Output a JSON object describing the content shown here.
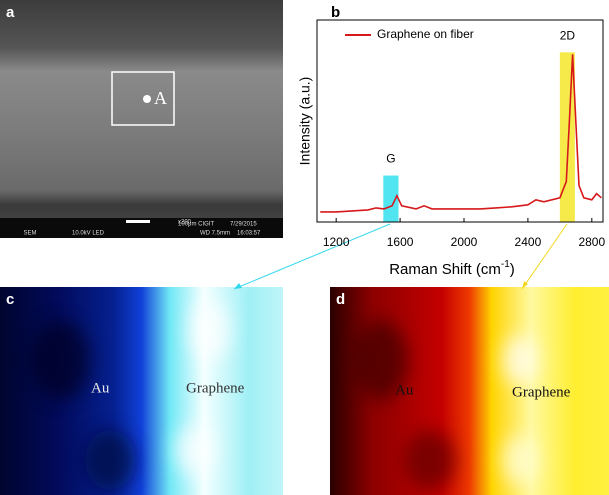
{
  "panels": {
    "a": {
      "label": "a",
      "marker": "A",
      "info": [
        "x200",
        "10.0kV LED",
        "SEM",
        "WD 7.5mm",
        "100μm CIGIT",
        "7/29/2015",
        "16:03:57"
      ]
    },
    "c": {
      "label": "c",
      "left_text": "Au",
      "right_text": "Graphene"
    },
    "d": {
      "label": "d",
      "left_text": "Au",
      "right_text": "Graphene"
    }
  },
  "chart_data": {
    "type": "line",
    "panel_label": "b",
    "x_label": {
      "text": "Raman Shift (cm",
      "sup": "-1",
      "end": ")"
    },
    "y_label": "Intensity (a.u.)",
    "x": [
      1100,
      1200,
      1300,
      1400,
      1450,
      1500,
      1550,
      1580,
      1610,
      1700,
      1750,
      1800,
      1900,
      2000,
      2100,
      2200,
      2300,
      2400,
      2450,
      2500,
      2600,
      2640,
      2660,
      2680,
      2700,
      2720,
      2750,
      2800,
      2830,
      2860
    ],
    "series": [
      {
        "name": "Graphene on fiber",
        "color": "#d7191c",
        "values": [
          5,
          5,
          5.5,
          6,
          7,
          6.5,
          8,
          13,
          8,
          6.5,
          8,
          6.5,
          6.5,
          6.5,
          6.5,
          7,
          7.5,
          8.5,
          11,
          10,
          12,
          20,
          50,
          83,
          50,
          18,
          12,
          11,
          14,
          12
        ]
      }
    ],
    "xlim": [
      1080,
      2870
    ],
    "ylim": [
      0,
      100
    ],
    "xticks": [
      1200,
      1600,
      2000,
      2400,
      2800
    ],
    "highlights": [
      {
        "label": "G",
        "range": [
          1495,
          1590
        ],
        "top": 23,
        "color": "#33e0f0"
      },
      {
        "label": "2D",
        "range": [
          2600,
          2694
        ],
        "top": 84,
        "color": "#f5e62a"
      }
    ],
    "legend": "upper left"
  }
}
